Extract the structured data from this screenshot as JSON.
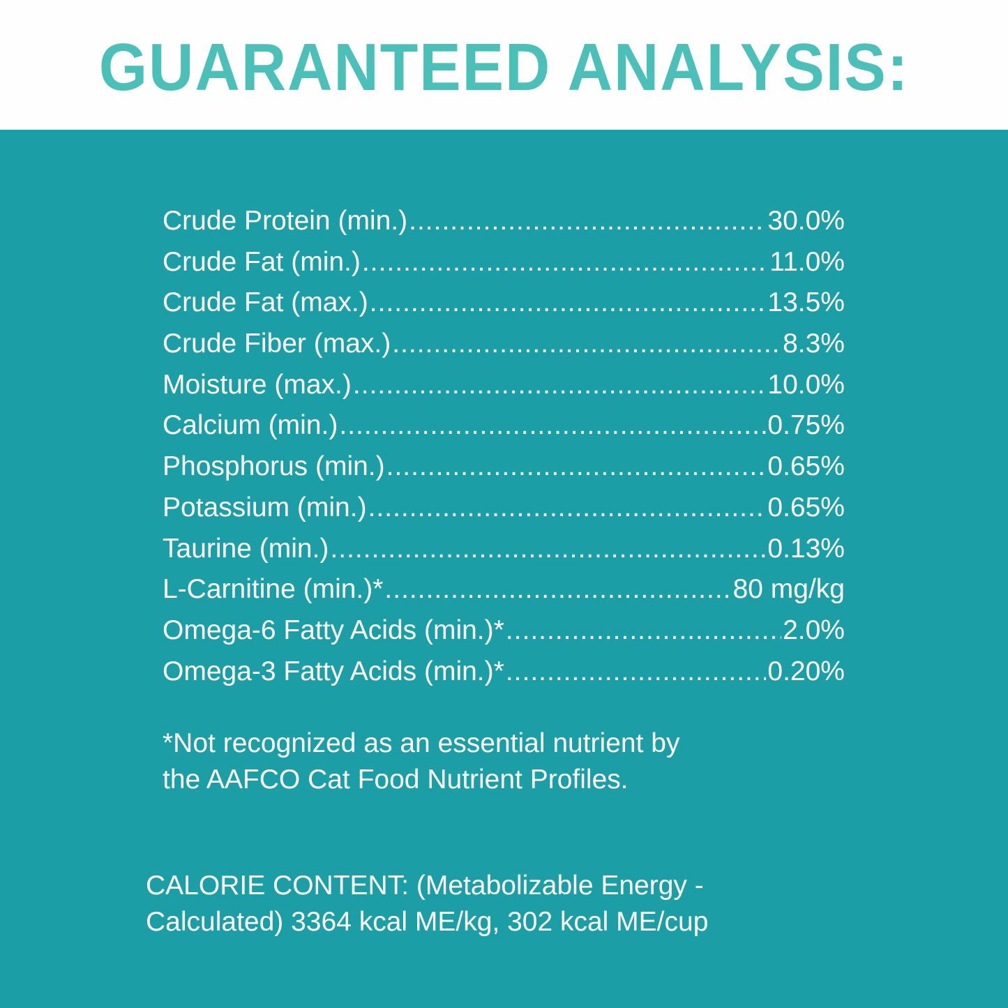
{
  "header": {
    "title": "GUARANTEED ANALYSIS:"
  },
  "colors": {
    "title": "#4bc0b9",
    "header_background": "#fefefe",
    "panel_background": "#1b9ea6",
    "text": "#ffffff"
  },
  "analysis": {
    "rows": [
      {
        "label": "Crude Protein (min.)",
        "value": "30.0%"
      },
      {
        "label": "Crude Fat (min.)",
        "value": "11.0%"
      },
      {
        "label": "Crude Fat (max.)",
        "value": "13.5%"
      },
      {
        "label": "Crude Fiber (max.)",
        "value": "8.3%"
      },
      {
        "label": "Moisture (max.)",
        "value": "10.0%"
      },
      {
        "label": "Calcium (min.)",
        "value": "0.75%"
      },
      {
        "label": "Phosphorus (min.)",
        "value": "0.65%"
      },
      {
        "label": "Potassium (min.)",
        "value": "0.65%"
      },
      {
        "label": "Taurine (min.)",
        "value": "0.13%"
      },
      {
        "label": "L-Carnitine (min.)*",
        "value": "80 mg/kg"
      },
      {
        "label": "Omega-6 Fatty Acids (min.)*",
        "value": "2.0%"
      },
      {
        "label": "Omega-3 Fatty Acids (min.)*",
        "value": "0.20%"
      }
    ]
  },
  "footnote": {
    "line1": "*Not recognized as an essential nutrient by",
    "line2": "the AAFCO Cat Food Nutrient Profiles."
  },
  "calorie": {
    "line1": "CALORIE CONTENT: (Metabolizable Energy -",
    "line2": "Calculated) 3364 kcal ME/kg, 302 kcal ME/cup"
  }
}
